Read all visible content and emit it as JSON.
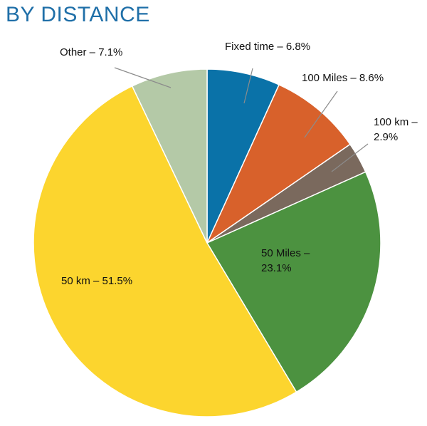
{
  "title": "BY DISTANCE",
  "chart_data": {
    "type": "pie",
    "title": "BY DISTANCE",
    "start": "top",
    "direction": "clockwise",
    "slices": [
      {
        "label": "Fixed time – 6.8%",
        "value": 6.8,
        "color": "#0a72a8"
      },
      {
        "label": "100 Miles – 8.6%",
        "value": 8.6,
        "color": "#d8612b"
      },
      {
        "label": "100 km – 2.9%",
        "value": 2.9,
        "color": "#7a695d"
      },
      {
        "label": "50 Miles – 23.1%",
        "value": 23.1,
        "color": "#4c9240"
      },
      {
        "label": "50 km – 51.5%",
        "value": 51.5,
        "color": "#fcd52e"
      },
      {
        "label": "Other – 7.1%",
        "value": 7.1,
        "color": "#b4c9a7"
      }
    ]
  }
}
